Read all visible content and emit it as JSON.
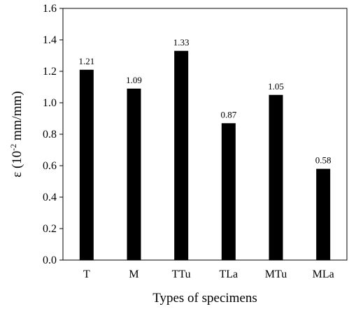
{
  "chart_data": {
    "type": "bar",
    "categories": [
      "T",
      "M",
      "TTu",
      "TLa",
      "MTu",
      "MLa"
    ],
    "values": [
      1.21,
      1.09,
      1.33,
      0.87,
      1.05,
      0.58
    ],
    "data_labels": [
      "1.21",
      "1.09",
      "1.33",
      "0.87",
      "1.05",
      "0.58"
    ],
    "xlabel": "Types of specimens",
    "ylabel": {
      "prefix": "ε (10",
      "superscript": "-2",
      "suffix": " mm/mm)"
    },
    "ylim": [
      0,
      1.6
    ],
    "yticks": [
      "0.0",
      "0.2",
      "0.4",
      "0.6",
      "0.8",
      "1.0",
      "1.2",
      "1.4",
      "1.6"
    ],
    "grid": false,
    "bar_color": "#000000"
  }
}
